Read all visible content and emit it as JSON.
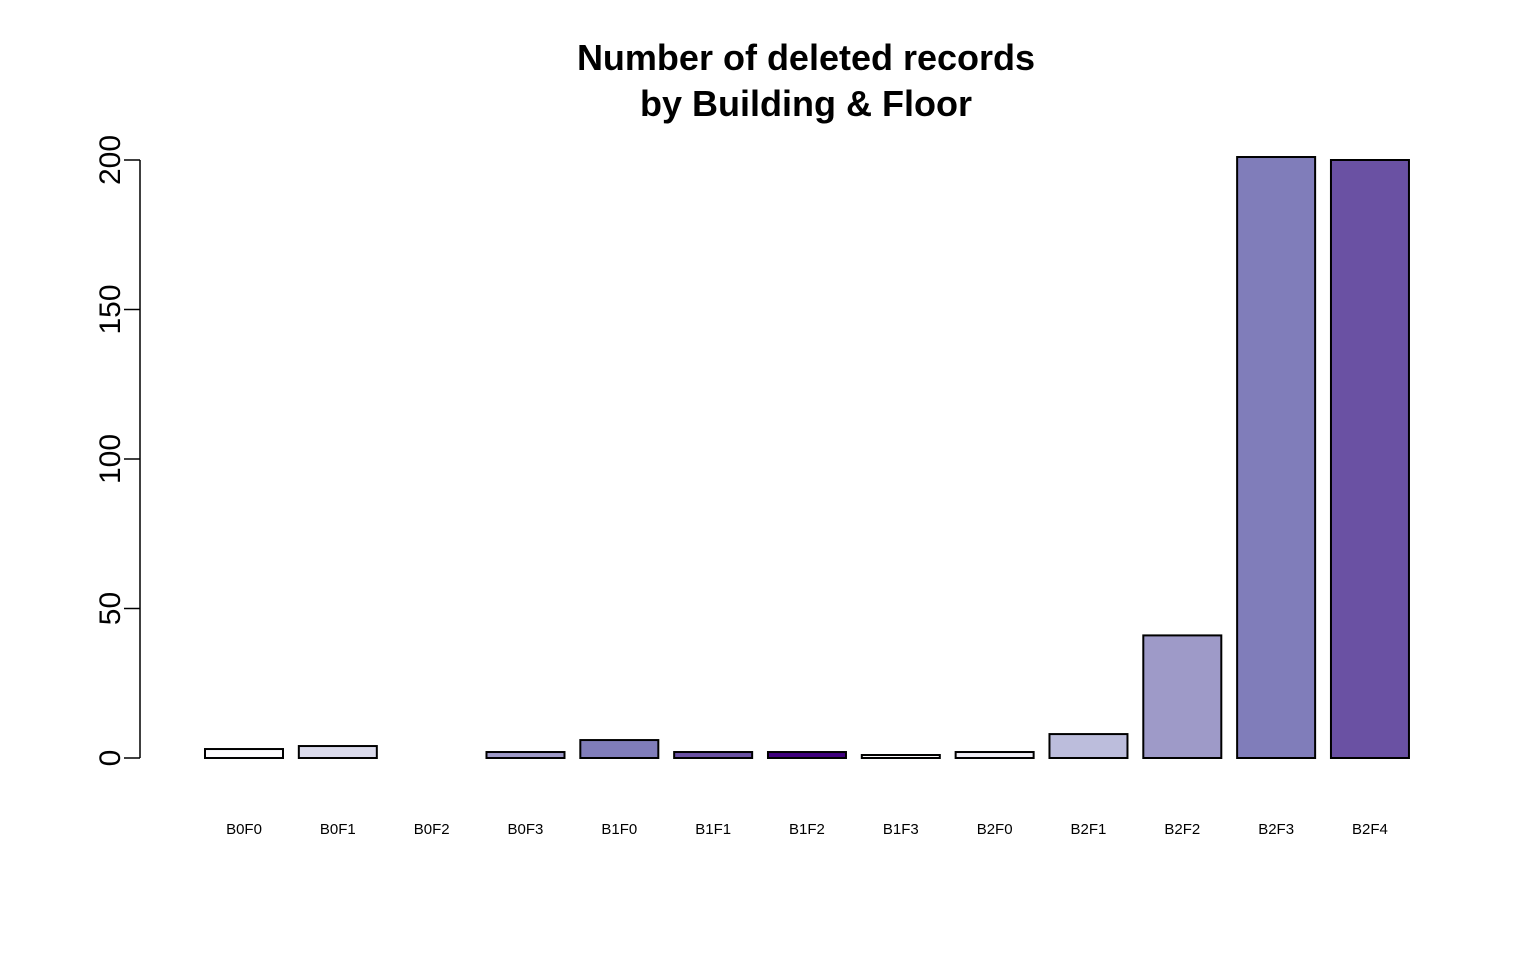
{
  "chart_data": {
    "type": "bar",
    "title": "Number of deleted records",
    "subtitle": "by Building & Floor",
    "xlabel": "",
    "ylabel": "",
    "categories": [
      "B0F0",
      "B0F1",
      "B0F2",
      "B0F3",
      "B1F0",
      "B1F1",
      "B1F2",
      "B1F3",
      "B2F0",
      "B2F1",
      "B2F2",
      "B2F3",
      "B2F4"
    ],
    "values": [
      3,
      4,
      0,
      2,
      6,
      2,
      2,
      1,
      2,
      8,
      41,
      201,
      200
    ],
    "colors": [
      "#FCFBFD",
      "#DADAEB",
      "#FCFBFD",
      "#9E9AC8",
      "#807DBA",
      "#6A51A3",
      "#3F007D",
      "#FCFBFD",
      "#EFEDF5",
      "#BCBDDC",
      "#9E9AC8",
      "#807DBA",
      "#6A51A3"
    ],
    "ylim": [
      0,
      200
    ],
    "yticks": [
      0,
      50,
      100,
      150,
      200
    ],
    "grid": false,
    "legend": "none"
  }
}
